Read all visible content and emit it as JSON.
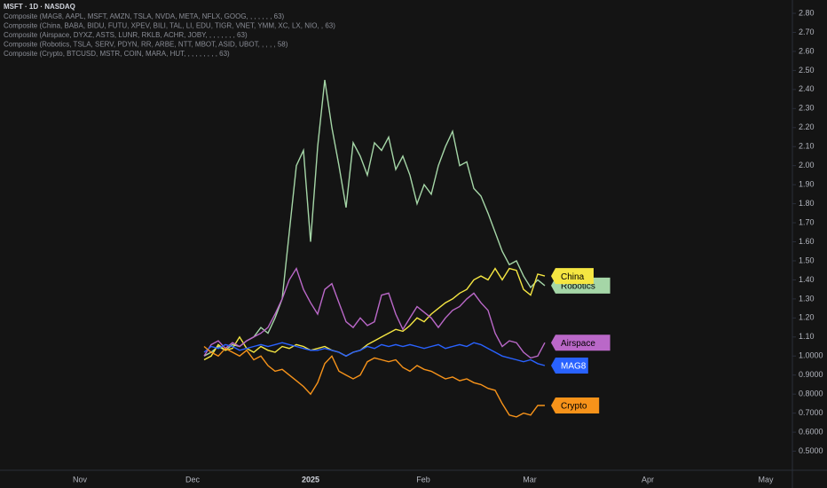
{
  "chart_data": {
    "type": "line",
    "title": "MSFT · 1D · NASDAQ",
    "legend_lines": [
      "Composite (MAG8, AAPL, MSFT, AMZN, TSLA, NVDA, META, NFLX, GOOG, , , , , , , 63)",
      "Composite (China, BABA, BIDU, FUTU, XPEV, BILI, TAL, LI, EDU, TIGR, VNET, YMM, XC, LX, NIO, , 63)",
      "Composite (Airspace, DYXZ, ASTS, LUNR, RKLB, ACHR, JOBY, , , , , , , , 63)",
      "Composite (Robotics, TSLA, SERV, PDYN, RR, ARBE, NTT, MBOT, ASID, UBOT, , , , , 58)",
      "Composite (Crypto, BTCUSD, MSTR, COIN, MARA, HUT, , , , , , , , , 63)"
    ],
    "x_labels": [
      "Nov",
      "Dec",
      "2025",
      "Feb",
      "Mar",
      "Apr",
      "May"
    ],
    "ylim": [
      0.4,
      2.87
    ],
    "yticks": [
      {
        "value": 2.8,
        "label": "2.80"
      },
      {
        "value": 2.7,
        "label": "2.70"
      },
      {
        "value": 2.6,
        "label": "2.60"
      },
      {
        "value": 2.5,
        "label": "2.50"
      },
      {
        "value": 2.4,
        "label": "2.40"
      },
      {
        "value": 2.3,
        "label": "2.30"
      },
      {
        "value": 2.2,
        "label": "2.20"
      },
      {
        "value": 2.1,
        "label": "2.10"
      },
      {
        "value": 2.0,
        "label": "2.00"
      },
      {
        "value": 1.9,
        "label": "1.90"
      },
      {
        "value": 1.8,
        "label": "1.80"
      },
      {
        "value": 1.7,
        "label": "1.70"
      },
      {
        "value": 1.6,
        "label": "1.60"
      },
      {
        "value": 1.5,
        "label": "1.50"
      },
      {
        "value": 1.4,
        "label": "1.40"
      },
      {
        "value": 1.3,
        "label": "1.30"
      },
      {
        "value": 1.2,
        "label": "1.20"
      },
      {
        "value": 1.1,
        "label": "1.10"
      },
      {
        "value": 1.0,
        "label": "1.0000"
      },
      {
        "value": 0.9,
        "label": "0.9000"
      },
      {
        "value": 0.8,
        "label": "0.8000"
      },
      {
        "value": 0.7,
        "label": "0.7000"
      },
      {
        "value": 0.6,
        "label": "0.6000"
      },
      {
        "value": 0.5,
        "label": "0.5000"
      }
    ],
    "series": [
      {
        "name": "Robotics",
        "color": "#a5d6a7",
        "values": [
          1.0,
          1.02,
          1.05,
          1.03,
          1.06,
          1.05,
          1.08,
          1.1,
          1.15,
          1.12,
          1.2,
          1.3,
          1.65,
          2.0,
          2.08,
          1.6,
          2.1,
          2.45,
          2.2,
          2.0,
          1.78,
          2.12,
          2.05,
          1.95,
          2.12,
          2.08,
          2.15,
          1.98,
          2.05,
          1.95,
          1.8,
          1.9,
          1.85,
          2.0,
          2.1,
          2.18,
          2.0,
          2.02,
          1.88,
          1.84,
          1.75,
          1.65,
          1.55,
          1.48,
          1.5,
          1.42,
          1.36,
          1.4,
          1.37
        ]
      },
      {
        "name": "China",
        "color": "#f5e642",
        "values": [
          0.98,
          1.0,
          1.06,
          1.03,
          1.04,
          1.1,
          1.04,
          1.02,
          1.05,
          1.03,
          1.02,
          1.05,
          1.04,
          1.06,
          1.05,
          1.03,
          1.04,
          1.05,
          1.03,
          1.02,
          1.0,
          1.02,
          1.03,
          1.06,
          1.08,
          1.1,
          1.12,
          1.14,
          1.13,
          1.16,
          1.2,
          1.18,
          1.22,
          1.25,
          1.28,
          1.3,
          1.33,
          1.35,
          1.4,
          1.42,
          1.4,
          1.46,
          1.4,
          1.46,
          1.45,
          1.35,
          1.32,
          1.43,
          1.42
        ]
      },
      {
        "name": "Airspace",
        "color": "#ba68c8",
        "values": [
          1.0,
          1.06,
          1.08,
          1.04,
          1.07,
          1.05,
          1.08,
          1.1,
          1.12,
          1.15,
          1.22,
          1.3,
          1.4,
          1.46,
          1.35,
          1.28,
          1.22,
          1.35,
          1.38,
          1.28,
          1.18,
          1.15,
          1.2,
          1.16,
          1.18,
          1.32,
          1.33,
          1.22,
          1.14,
          1.2,
          1.26,
          1.23,
          1.2,
          1.15,
          1.2,
          1.24,
          1.26,
          1.3,
          1.33,
          1.28,
          1.24,
          1.12,
          1.05,
          1.08,
          1.07,
          1.02,
          0.99,
          1.0,
          1.07
        ]
      },
      {
        "name": "MAG8",
        "color": "#2962ff",
        "values": [
          1.02,
          1.05,
          1.04,
          1.06,
          1.05,
          1.03,
          1.04,
          1.05,
          1.06,
          1.05,
          1.06,
          1.07,
          1.06,
          1.05,
          1.04,
          1.03,
          1.03,
          1.04,
          1.03,
          1.02,
          1.0,
          1.02,
          1.03,
          1.05,
          1.04,
          1.06,
          1.05,
          1.06,
          1.05,
          1.06,
          1.05,
          1.04,
          1.05,
          1.06,
          1.04,
          1.05,
          1.06,
          1.05,
          1.07,
          1.06,
          1.04,
          1.02,
          1.0,
          0.99,
          0.98,
          0.97,
          0.98,
          0.96,
          0.95
        ]
      },
      {
        "name": "Crypto",
        "color": "#f7931a",
        "values": [
          1.05,
          1.02,
          1.0,
          1.04,
          1.02,
          1.0,
          1.03,
          0.98,
          1.0,
          0.95,
          0.92,
          0.93,
          0.9,
          0.87,
          0.84,
          0.8,
          0.86,
          0.96,
          1.0,
          0.92,
          0.9,
          0.88,
          0.9,
          0.97,
          0.99,
          0.98,
          0.97,
          0.98,
          0.94,
          0.92,
          0.95,
          0.93,
          0.92,
          0.9,
          0.88,
          0.89,
          0.87,
          0.88,
          0.86,
          0.85,
          0.83,
          0.82,
          0.75,
          0.69,
          0.68,
          0.7,
          0.69,
          0.74,
          0.74
        ]
      }
    ]
  }
}
